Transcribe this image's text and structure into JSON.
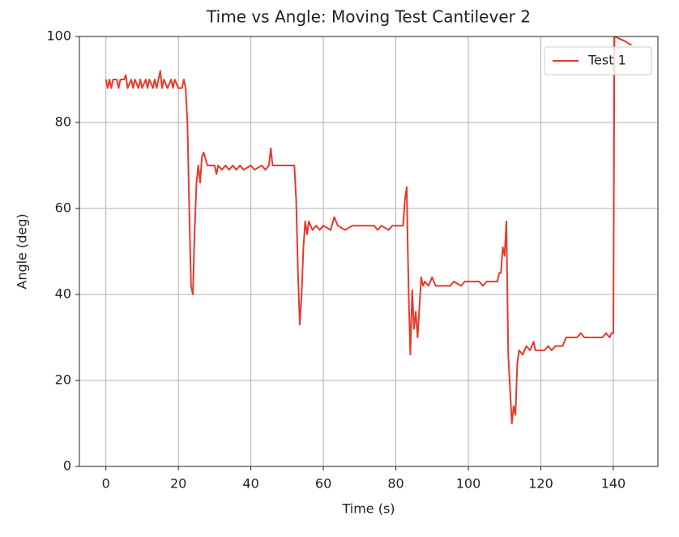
{
  "chart_data": {
    "type": "line",
    "title": "Time vs Angle: Moving Test Cantilever 2",
    "x_label": "Time (s)",
    "y_label": "Angle (deg)",
    "x": [
      0,
      0.5,
      1,
      1.5,
      2,
      3,
      3.5,
      4,
      5,
      5.5,
      6,
      7,
      7.5,
      8,
      9,
      9.5,
      10,
      11,
      11.5,
      12,
      13,
      13.5,
      14,
      15,
      15.5,
      16,
      17,
      18,
      18.5,
      19,
      20,
      21,
      21.5,
      22,
      22.5,
      23,
      23.5,
      24,
      24.5,
      25,
      25.5,
      26,
      26.5,
      27,
      28,
      29,
      30,
      30.5,
      31,
      32,
      33,
      34,
      35,
      36,
      37,
      38,
      40,
      41,
      43,
      44,
      45,
      45.5,
      46,
      52,
      52.5,
      53,
      53.5,
      54,
      54.5,
      55,
      55.5,
      56,
      57,
      58,
      59,
      60,
      62,
      63,
      64,
      66,
      68,
      70,
      72,
      74,
      75,
      76,
      78,
      79,
      82,
      82.5,
      83,
      83.3,
      83.6,
      84,
      84.5,
      85,
      85.5,
      86,
      86.5,
      87,
      87.5,
      88,
      89,
      90,
      91,
      93,
      95,
      96,
      98,
      99,
      101,
      103,
      104,
      105,
      108,
      108.5,
      109,
      109.5,
      110,
      110.5,
      111,
      111.5,
      112,
      112.5,
      113,
      113.5,
      114,
      115,
      116,
      117,
      118,
      118.5,
      120,
      121,
      122,
      123,
      124,
      125,
      126,
      127,
      130,
      131,
      132,
      137,
      138,
      139,
      139.5,
      140,
      140.3,
      143,
      145
    ],
    "series": [
      {
        "name": "Test 1",
        "color": "#e8392b",
        "values": [
          90,
          88,
          90,
          88,
          90,
          90,
          88,
          90,
          90,
          91,
          88,
          90,
          88,
          90,
          88,
          90,
          88,
          90,
          88,
          90,
          88,
          90,
          88,
          92,
          88,
          90,
          88,
          90,
          88,
          90,
          88,
          88,
          90,
          88,
          80,
          60,
          42,
          40,
          55,
          66,
          70,
          66,
          72,
          73,
          70,
          70,
          70,
          68,
          70,
          69,
          70,
          69,
          70,
          69,
          70,
          69,
          70,
          69,
          70,
          69,
          70,
          74,
          70,
          70,
          62,
          45,
          33,
          40,
          51,
          57,
          54,
          57,
          55,
          56,
          55,
          56,
          55,
          58,
          56,
          55,
          56,
          56,
          56,
          56,
          55,
          56,
          55,
          56,
          56,
          62,
          65,
          50,
          38,
          26,
          41,
          32,
          36,
          30,
          37,
          44,
          42,
          43,
          42,
          44,
          42,
          42,
          42,
          43,
          42,
          43,
          43,
          43,
          42,
          43,
          43,
          45,
          45,
          51,
          49,
          57,
          26,
          18,
          10,
          14,
          12,
          24,
          27,
          26,
          28,
          27,
          29,
          27,
          27,
          27,
          28,
          27,
          28,
          28,
          28,
          30,
          30,
          31,
          30,
          30,
          31,
          30,
          31,
          31,
          100,
          99,
          98
        ]
      }
    ],
    "xlim": [
      -7.3,
      152.3
    ],
    "ylim": [
      0,
      100
    ],
    "xticks": [
      0,
      20,
      40,
      60,
      80,
      100,
      120,
      140
    ],
    "yticks": [
      0,
      20,
      40,
      60,
      80,
      100
    ],
    "grid": true,
    "legend": "upper right"
  }
}
